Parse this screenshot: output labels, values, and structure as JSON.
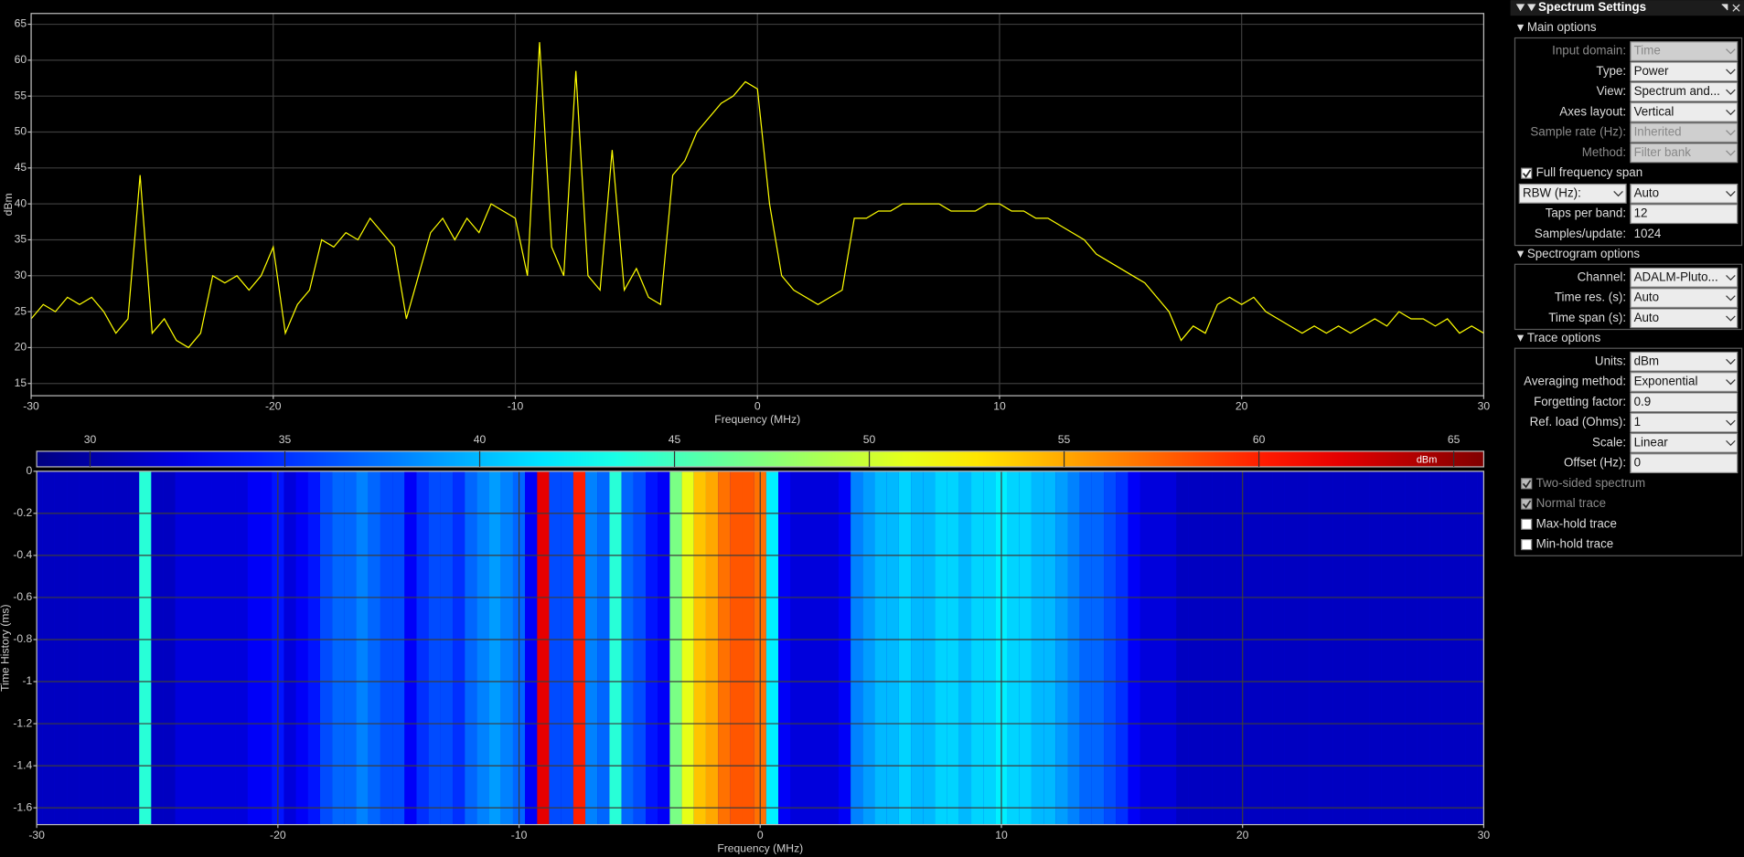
{
  "chart_data": [
    {
      "type": "line",
      "xlabel": "Frequency (MHz)",
      "ylabel": "dBm",
      "x": [
        -30,
        -29.5,
        -29,
        -28.5,
        -28,
        -27.5,
        -27,
        -26.5,
        -26,
        -25.5,
        -25,
        -24.5,
        -24,
        -23.5,
        -23,
        -22.5,
        -22,
        -21.5,
        -21,
        -20.5,
        -20,
        -19.5,
        -19,
        -18.5,
        -18,
        -17.5,
        -17,
        -16.5,
        -16,
        -15.5,
        -15,
        -14.5,
        -14,
        -13.5,
        -13,
        -12.5,
        -12,
        -11.5,
        -11,
        -10.5,
        -10,
        -9.5,
        -9,
        -8.5,
        -8,
        -7.5,
        -7,
        -6.5,
        -6,
        -5.5,
        -5,
        -4.5,
        -4,
        -3.5,
        -3,
        -2.5,
        -2,
        -1.5,
        -1,
        -0.5,
        0,
        0.5,
        1,
        1.5,
        2,
        2.5,
        3,
        3.5,
        4,
        4.5,
        5,
        5.5,
        6,
        6.5,
        7,
        7.5,
        8,
        8.5,
        9,
        9.5,
        10,
        10.5,
        11,
        11.5,
        12,
        12.5,
        13,
        13.5,
        14,
        14.5,
        15,
        15.5,
        16,
        16.5,
        17,
        17.5,
        18,
        18.5,
        19,
        19.5,
        20,
        20.5,
        21,
        21.5,
        22,
        22.5,
        23,
        23.5,
        24,
        24.5,
        25,
        25.5,
        26,
        26.5,
        27,
        27.5,
        28,
        28.5,
        29,
        29.5,
        30
      ],
      "series": [
        {
          "name": "ADALM-Pluto",
          "color": "#ffff00",
          "values": [
            24,
            26,
            25,
            27,
            26,
            27,
            25,
            22,
            24,
            44,
            22,
            24,
            21,
            20,
            22,
            30,
            29,
            30,
            28,
            30,
            34,
            22,
            26,
            28,
            35,
            34,
            36,
            35,
            38,
            36,
            34,
            24,
            30,
            36,
            38,
            35,
            38,
            36,
            40,
            39,
            38,
            30,
            62.5,
            34,
            30,
            58.5,
            30,
            28,
            47.5,
            28,
            31,
            27,
            26,
            44,
            46,
            50,
            52,
            54,
            55,
            57,
            56,
            40,
            30,
            28,
            27,
            26,
            27,
            28,
            38,
            38,
            39,
            39,
            40,
            40,
            40,
            40,
            39,
            39,
            39,
            40,
            40,
            39,
            39,
            38,
            38,
            37,
            36,
            35,
            33,
            32,
            31,
            30,
            29,
            27,
            25,
            21,
            23,
            22,
            26,
            27,
            26,
            27,
            25,
            24,
            23,
            22,
            23,
            22,
            23,
            22,
            23,
            24,
            23,
            25,
            24,
            24,
            23,
            24,
            22,
            23,
            22
          ]
        }
      ],
      "xlim": [
        -30,
        30
      ],
      "xticks": [
        -30,
        -20,
        -10,
        0,
        10,
        20,
        30
      ],
      "ylim": [
        13.3,
        66.5
      ],
      "yticks": [
        15,
        20,
        25,
        30,
        35,
        40,
        45,
        50,
        55,
        60,
        65
      ],
      "grid": true
    },
    {
      "type": "heatmap",
      "xlabel": "Frequency (MHz)",
      "ylabel": "Time History (ms)",
      "x": [
        -30,
        -29.5,
        -29,
        -28.5,
        -28,
        -27.5,
        -27,
        -26.5,
        -26,
        -25.5,
        -25,
        -24.5,
        -24,
        -23.5,
        -23,
        -22.5,
        -22,
        -21.5,
        -21,
        -20.5,
        -20,
        -19.5,
        -19,
        -18.5,
        -18,
        -17.5,
        -17,
        -16.5,
        -16,
        -15.5,
        -15,
        -14.5,
        -14,
        -13.5,
        -13,
        -12.5,
        -12,
        -11.5,
        -11,
        -10.5,
        -10,
        -9.5,
        -9,
        -8.5,
        -8,
        -7.5,
        -7,
        -6.5,
        -6,
        -5.5,
        -5,
        -4.5,
        -4,
        -3.5,
        -3,
        -2.5,
        -2,
        -1.5,
        -1,
        -0.5,
        0,
        0.5,
        1,
        1.5,
        2,
        2.5,
        3,
        3.5,
        4,
        4.5,
        5,
        5.5,
        6,
        6.5,
        7,
        7.5,
        8,
        8.5,
        9,
        9.5,
        10,
        10.5,
        11,
        11.5,
        12,
        12.5,
        13,
        13.5,
        14,
        14.5,
        15,
        15.5,
        16,
        16.5,
        17,
        17.5,
        18,
        18.5,
        19,
        19.5,
        20,
        20.5,
        21,
        21.5,
        22,
        22.5,
        23,
        23.5,
        24,
        24.5,
        25,
        25.5,
        26,
        26.5,
        27,
        27.5,
        28,
        28.5,
        29,
        29.5,
        30
      ],
      "values": [
        31,
        31,
        31,
        31,
        31,
        31,
        31,
        31,
        31,
        44,
        31,
        31,
        32,
        32,
        32,
        32,
        32,
        32,
        33,
        33,
        34,
        32,
        33,
        34,
        36,
        37,
        37,
        38,
        37,
        36,
        36,
        33,
        35,
        36,
        36,
        35,
        37,
        38,
        39,
        38,
        37,
        33,
        62,
        36,
        36,
        60,
        38,
        37,
        44,
        37,
        36,
        34,
        33,
        47,
        51,
        54,
        55,
        57,
        58,
        58,
        57,
        42,
        33,
        32,
        32,
        32,
        32,
        33,
        38,
        39,
        40,
        40,
        41,
        40,
        40,
        41,
        41,
        40,
        41,
        41,
        42,
        41,
        41,
        40,
        40,
        39,
        38,
        37,
        37,
        36,
        35,
        33,
        32,
        32,
        32,
        31,
        31,
        31,
        31,
        31,
        31,
        31,
        31,
        31,
        31,
        31,
        31,
        31,
        31,
        31,
        31,
        31,
        31,
        31,
        31,
        31,
        31,
        31,
        31,
        31,
        31
      ],
      "xlim": [
        -30,
        30
      ],
      "xticks": [
        -30,
        -20,
        -10,
        0,
        10,
        20,
        30
      ],
      "ylim": [
        -1.68,
        0
      ],
      "yticks": [
        0,
        -0.2,
        -0.4,
        -0.6,
        -0.8,
        -1,
        -1.2,
        -1.4,
        -1.6
      ],
      "grid": true,
      "colormap": "jet",
      "colorbar": {
        "lim": [
          28.63,
          65.77
        ],
        "ticks": [
          30,
          35,
          40,
          45,
          50,
          55,
          60,
          65
        ],
        "label": "dBm"
      }
    }
  ],
  "panel": {
    "title": "Spectrum Settings",
    "sections": [
      {
        "title": "Main options",
        "rows": [
          {
            "label": "Input domain:",
            "value": "Time",
            "control": "dropdown",
            "disabled": true
          },
          {
            "label": "Type:",
            "value": "Power",
            "control": "dropdown"
          },
          {
            "label": "View:",
            "value": "Spectrum and...",
            "control": "dropdown"
          },
          {
            "label": "Axes layout:",
            "value": "Vertical",
            "control": "dropdown"
          },
          {
            "label": "Sample rate (Hz):",
            "value": "Inherited",
            "control": "dropdown",
            "disabled": true
          },
          {
            "label": "Method:",
            "value": "Filter bank",
            "control": "dropdown",
            "disabled": true
          },
          {
            "label": "Full frequency span",
            "control": "checkbox",
            "checked": true
          },
          {
            "label": "RBW (Hz):",
            "value": "Auto",
            "control": "dropdown",
            "label_control": "dropdown"
          },
          {
            "label": "Taps per band:",
            "value": "12",
            "control": "text"
          },
          {
            "label": "Samples/update:",
            "value": "1024",
            "control": "static"
          }
        ]
      },
      {
        "title": "Spectrogram options",
        "rows": [
          {
            "label": "Channel:",
            "value": "ADALM-Pluto...",
            "control": "dropdown"
          },
          {
            "label": "Time res. (s):",
            "value": "Auto",
            "control": "dropdown"
          },
          {
            "label": "Time span (s):",
            "value": "Auto",
            "control": "dropdown"
          }
        ]
      },
      {
        "title": "Trace options",
        "rows": [
          {
            "label": "Units:",
            "value": "dBm",
            "control": "dropdown"
          },
          {
            "label": "Averaging method:",
            "value": "Exponential",
            "control": "dropdown"
          },
          {
            "label": "Forgetting factor:",
            "value": "0.9",
            "control": "text"
          },
          {
            "label": "Ref. load (Ohms):",
            "value": "1",
            "control": "dropdown"
          },
          {
            "label": "Scale:",
            "value": "Linear",
            "control": "dropdown"
          },
          {
            "label": "Offset (Hz):",
            "value": "0",
            "control": "text"
          },
          {
            "label": "Two-sided spectrum",
            "control": "checkbox",
            "checked": true,
            "disabled": true
          },
          {
            "label": "Normal trace",
            "control": "checkbox",
            "checked": true,
            "disabled": true
          },
          {
            "label": "Max-hold trace",
            "control": "checkbox",
            "checked": false
          },
          {
            "label": "Min-hold trace",
            "control": "checkbox",
            "checked": false
          }
        ]
      }
    ]
  }
}
